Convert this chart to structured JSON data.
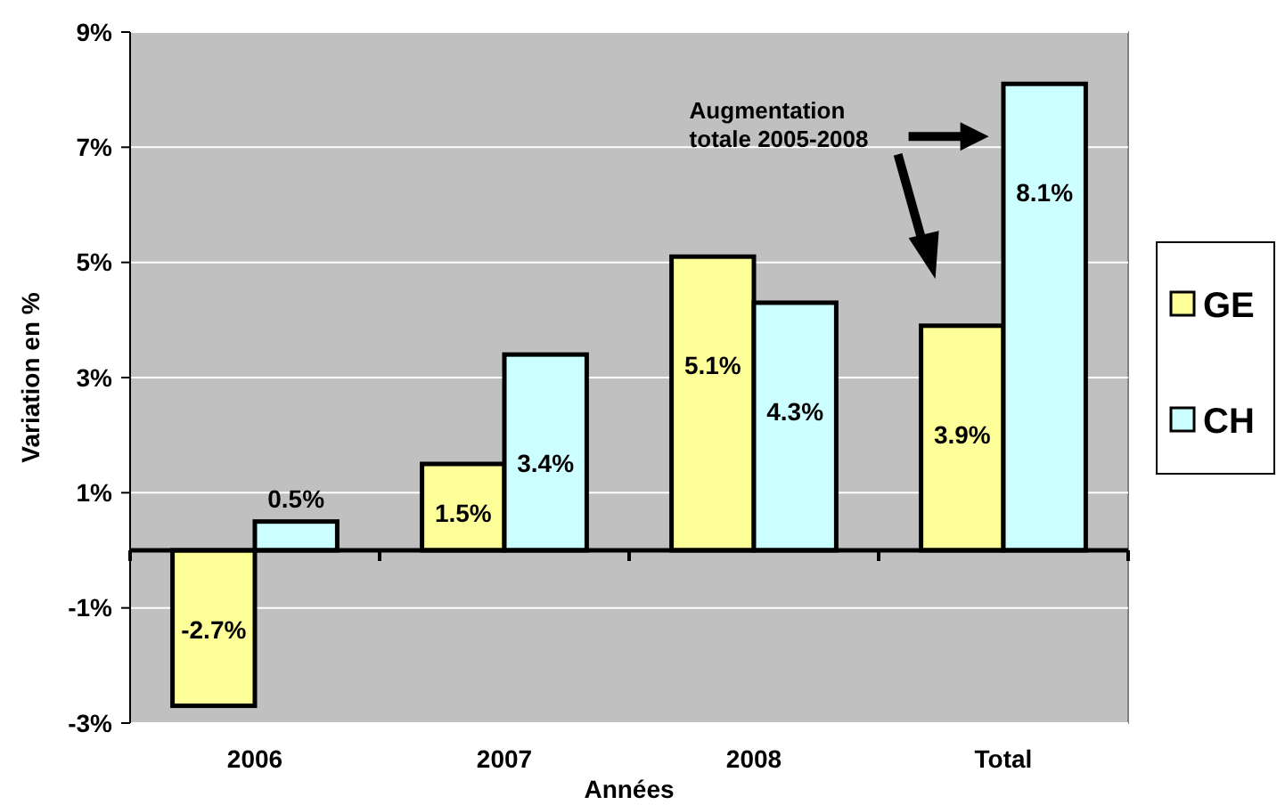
{
  "chart_data": {
    "type": "bar",
    "xlabel": "Années",
    "ylabel": "Variation en %",
    "categories": [
      "2006",
      "2007",
      "2008",
      "Total"
    ],
    "series": [
      {
        "name": "GE",
        "color": "#ffff99",
        "values": [
          -2.7,
          1.5,
          5.1,
          3.9
        ],
        "value_labels": [
          "-2.7%",
          "1.5%",
          "5.1%",
          "3.9%"
        ]
      },
      {
        "name": "CH",
        "color": "#ccffff",
        "values": [
          0.5,
          3.4,
          4.3,
          8.1
        ],
        "value_labels": [
          "0.5%",
          "3.4%",
          "4.3%",
          "8.1%"
        ]
      }
    ],
    "ylim": [
      -3,
      9
    ],
    "yticks": [
      {
        "value": -3,
        "label": "-3%"
      },
      {
        "value": -1,
        "label": "-1%"
      },
      {
        "value": 1,
        "label": "1%"
      },
      {
        "value": 3,
        "label": "3%"
      },
      {
        "value": 5,
        "label": "5%"
      },
      {
        "value": 7,
        "label": "7%"
      },
      {
        "value": 9,
        "label": "9%"
      }
    ],
    "grid": "y",
    "legend": "right",
    "annotations": [
      "Augmentation totale 2005-2008"
    ]
  }
}
